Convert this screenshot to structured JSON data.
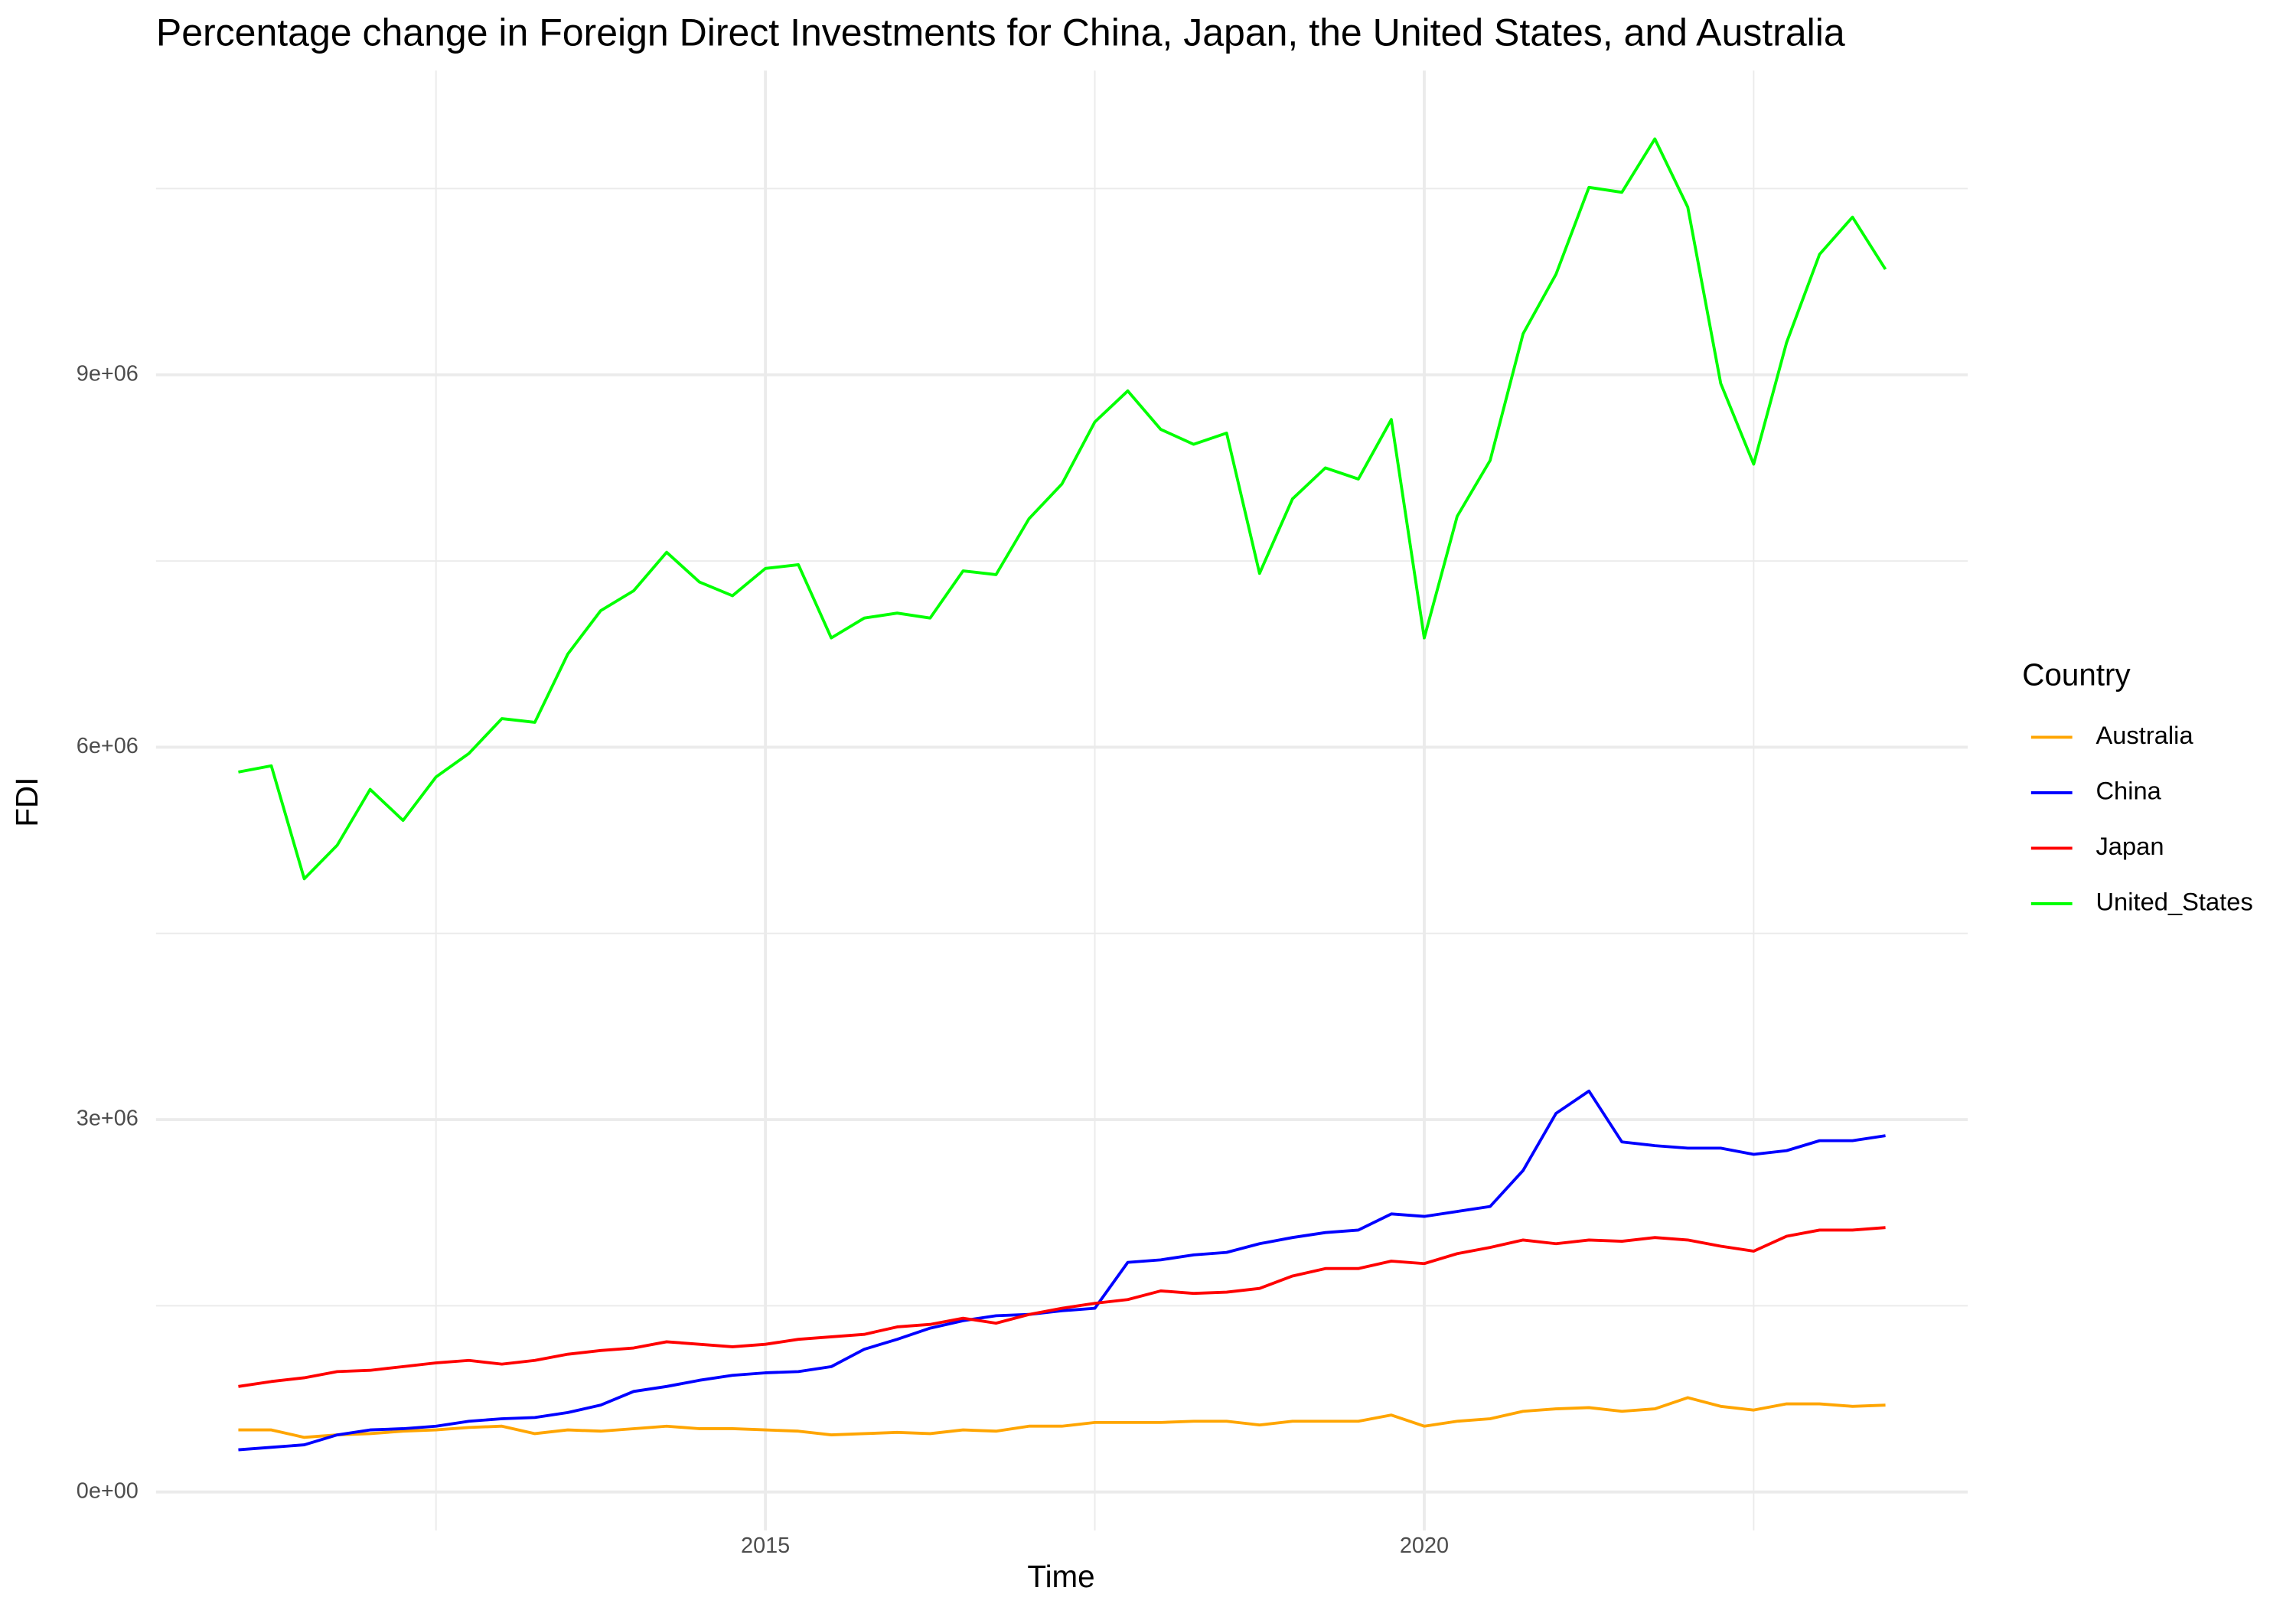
{
  "chart_data": {
    "type": "line",
    "title": "Percentage change in Foreign Direct Investments for China, Japan, the United States, and Australia",
    "x_label": "Time",
    "y_label": "FDI",
    "legend_title": "Country",
    "legend_position": "right",
    "grid": true,
    "xlim": [
      2010.375,
      2024.125
    ],
    "ylim": [
      -310000,
      11450000
    ],
    "xticks": [
      2015,
      2020
    ],
    "xminor": [
      2012.5,
      2017.5,
      2022.5
    ],
    "yticks": [
      {
        "value": 0,
        "label": "0e+00"
      },
      {
        "value": 3000000,
        "label": "3e+06"
      },
      {
        "value": 6000000,
        "label": "6e+06"
      },
      {
        "value": 9000000,
        "label": "9e+06"
      }
    ],
    "yminor": [
      1500000,
      4500000,
      7500000,
      10500000
    ],
    "x": [
      2011,
      2011.25,
      2011.5,
      2011.75,
      2012,
      2012.25,
      2012.5,
      2012.75,
      2013,
      2013.25,
      2013.5,
      2013.75,
      2014,
      2014.25,
      2014.5,
      2014.75,
      2015,
      2015.25,
      2015.5,
      2015.75,
      2016,
      2016.25,
      2016.5,
      2016.75,
      2017,
      2017.25,
      2017.5,
      2017.75,
      2018,
      2018.25,
      2018.5,
      2018.75,
      2019,
      2019.25,
      2019.5,
      2019.75,
      2020,
      2020.25,
      2020.5,
      2020.75,
      2021,
      2021.25,
      2021.5,
      2021.75,
      2022,
      2022.25,
      2022.5,
      2022.75,
      2023,
      2023.25,
      2023.5
    ],
    "series": [
      {
        "name": "Australia",
        "color": "#ffa500",
        "values": [
          500000.0,
          500000.0,
          440000.0,
          460000.0,
          470000.0,
          490000.0,
          500000.0,
          520000.0,
          530000.0,
          470000.0,
          500000.0,
          490000.0,
          510000.0,
          530000.0,
          510000.0,
          510000.0,
          500000.0,
          490000.0,
          460000.0,
          470000.0,
          480000.0,
          470000.0,
          500000.0,
          490000.0,
          530000.0,
          530000.0,
          560000.0,
          560000.0,
          560000.0,
          570000.0,
          570000.0,
          540000.0,
          570000.0,
          570000.0,
          570000.0,
          620000.0,
          530000.0,
          570000.0,
          590000.0,
          650000.0,
          670000.0,
          680000.0,
          650000.0,
          670000.0,
          760000.0,
          690000.0,
          660000.0,
          710000.0,
          710000.0,
          690000.0,
          700000.0
        ]
      },
      {
        "name": "China",
        "color": "#0000ff",
        "values": [
          340000.0,
          360000.0,
          380000.0,
          460000.0,
          500000.0,
          510000.0,
          530000.0,
          570000.0,
          590000.0,
          600000.0,
          640000.0,
          700000.0,
          810000.0,
          850000.0,
          900000.0,
          940000.0,
          960000.0,
          970000.0,
          1010000.0,
          1150000.0,
          1230000.0,
          1320000.0,
          1380000.0,
          1420000.0,
          1430000.0,
          1460000.0,
          1480000.0,
          1850000.0,
          1870000.0,
          1910000.0,
          1930000.0,
          2000000.0,
          2050000.0,
          2090000.0,
          2110000.0,
          2240000.0,
          2220000.0,
          2260000.0,
          2300000.0,
          2590000.0,
          3050000.0,
          3230000.0,
          2820000.0,
          2790000.0,
          2770000.0,
          2770000.0,
          2720000.0,
          2750000.0,
          2830000.0,
          2830000.0,
          2870000.0
        ]
      },
      {
        "name": "Japan",
        "color": "#ff0000",
        "values": [
          850000.0,
          890000.0,
          920000.0,
          970000.0,
          980000.0,
          1010000.0,
          1040000.0,
          1060000.0,
          1030000.0,
          1060000.0,
          1110000.0,
          1140000.0,
          1160000.0,
          1210000.0,
          1190000.0,
          1170000.0,
          1190000.0,
          1230000.0,
          1250000.0,
          1270000.0,
          1330000.0,
          1350000.0,
          1400000.0,
          1360000.0,
          1430000.0,
          1480000.0,
          1520000.0,
          1550000.0,
          1620000.0,
          1600000.0,
          1610000.0,
          1640000.0,
          1740000.0,
          1800000.0,
          1800000.0,
          1860000.0,
          1840000.0,
          1920000.0,
          1970000.0,
          2030000.0,
          2000000.0,
          2030000.0,
          2020000.0,
          2050000.0,
          2030000.0,
          1980000.0,
          1940000.0,
          2060000.0,
          2110000.0,
          2110000.0,
          2130000.0
        ]
      },
      {
        "name": "United_States",
        "color": "#00ff00",
        "values": [
          5800000.0,
          5850000.0,
          4940000.0,
          5210000.0,
          5660000.0,
          5410000.0,
          5760000.0,
          5950000.0,
          6230000.0,
          6200000.0,
          6750000.0,
          7100000.0,
          7260000.0,
          7570000.0,
          7330000.0,
          7220000.0,
          7440000.0,
          7470000.0,
          6880000.0,
          7040000.0,
          7080000.0,
          7040000.0,
          7420000.0,
          7390000.0,
          7840000.0,
          8120000.0,
          8620000.0,
          8870000.0,
          8560000.0,
          8440000.0,
          8530000.0,
          7400000.0,
          8000000.0,
          8250000.0,
          8160000.0,
          8640000.0,
          6880000.0,
          7860000.0,
          8310000.0,
          9330000.0,
          9810000.0,
          10510000.0,
          10470000.0,
          10900000.0,
          10350000.0,
          8930000.0,
          8280000.0,
          9260000.0,
          9970000.0,
          10270000.0,
          9850000.0
        ]
      }
    ]
  }
}
